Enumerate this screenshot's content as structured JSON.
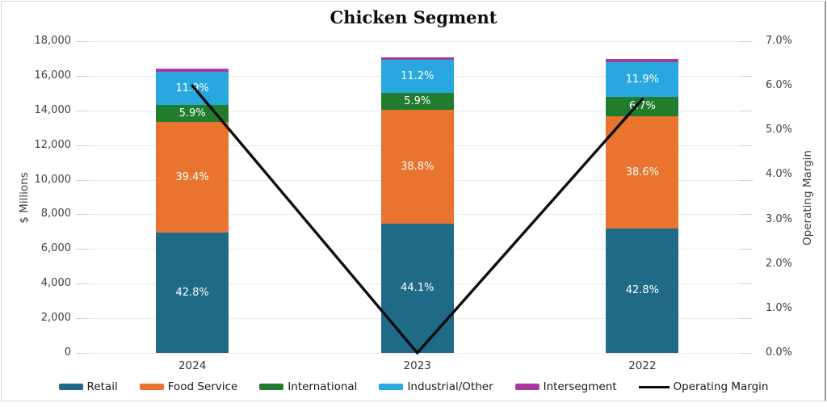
{
  "title": "Chicken Segment",
  "chart_data": {
    "type": "bar",
    "subtype": "stacked-bars-with-line-overlay",
    "categories": [
      "2024",
      "2023",
      "2022"
    ],
    "left_axis": {
      "label": "$ Millions",
      "min": 0,
      "max": 18000,
      "step": 2000,
      "ticks": [
        "0",
        "2,000",
        "4,000",
        "6,000",
        "8,000",
        "10,000",
        "12,000",
        "14,000",
        "16,000",
        "18,000"
      ]
    },
    "right_axis": {
      "label": "Operating Margin",
      "min": 0,
      "max": 7,
      "step": 1,
      "ticks": [
        "0.0%",
        "1.0%",
        "2.0%",
        "3.0%",
        "4.0%",
        "5.0%",
        "6.0%",
        "7.0%"
      ]
    },
    "series": [
      {
        "name": "Retail",
        "color": "#1e6a87",
        "values": [
          6950,
          7465,
          7185
        ],
        "pct_labels": [
          "42.8%",
          "44.1%",
          "42.8%"
        ]
      },
      {
        "name": "Food Service",
        "color": "#e8742f",
        "values": [
          6400,
          6570,
          6480
        ],
        "pct_labels": [
          "39.4%",
          "38.8%",
          "38.6%"
        ]
      },
      {
        "name": "International",
        "color": "#217c2d",
        "values": [
          960,
          1000,
          1125
        ],
        "pct_labels": [
          "5.9%",
          "5.9%",
          "6.7%"
        ]
      },
      {
        "name": "Industrial/Other",
        "color": "#29a8df",
        "values": [
          1930,
          1895,
          2000
        ],
        "pct_labels": [
          "11.9%",
          "11.2%",
          "11.9%"
        ]
      },
      {
        "name": "Intersegment",
        "color": "#a8399f",
        "values": [
          160,
          140,
          185
        ],
        "pct_labels": [
          "",
          "",
          ""
        ]
      }
    ],
    "line_series": {
      "name": "Operating Margin",
      "color": "#0d0d0d",
      "values_pct": [
        6.0,
        0.0,
        5.7
      ]
    },
    "grid": true,
    "legend_position": "bottom"
  }
}
